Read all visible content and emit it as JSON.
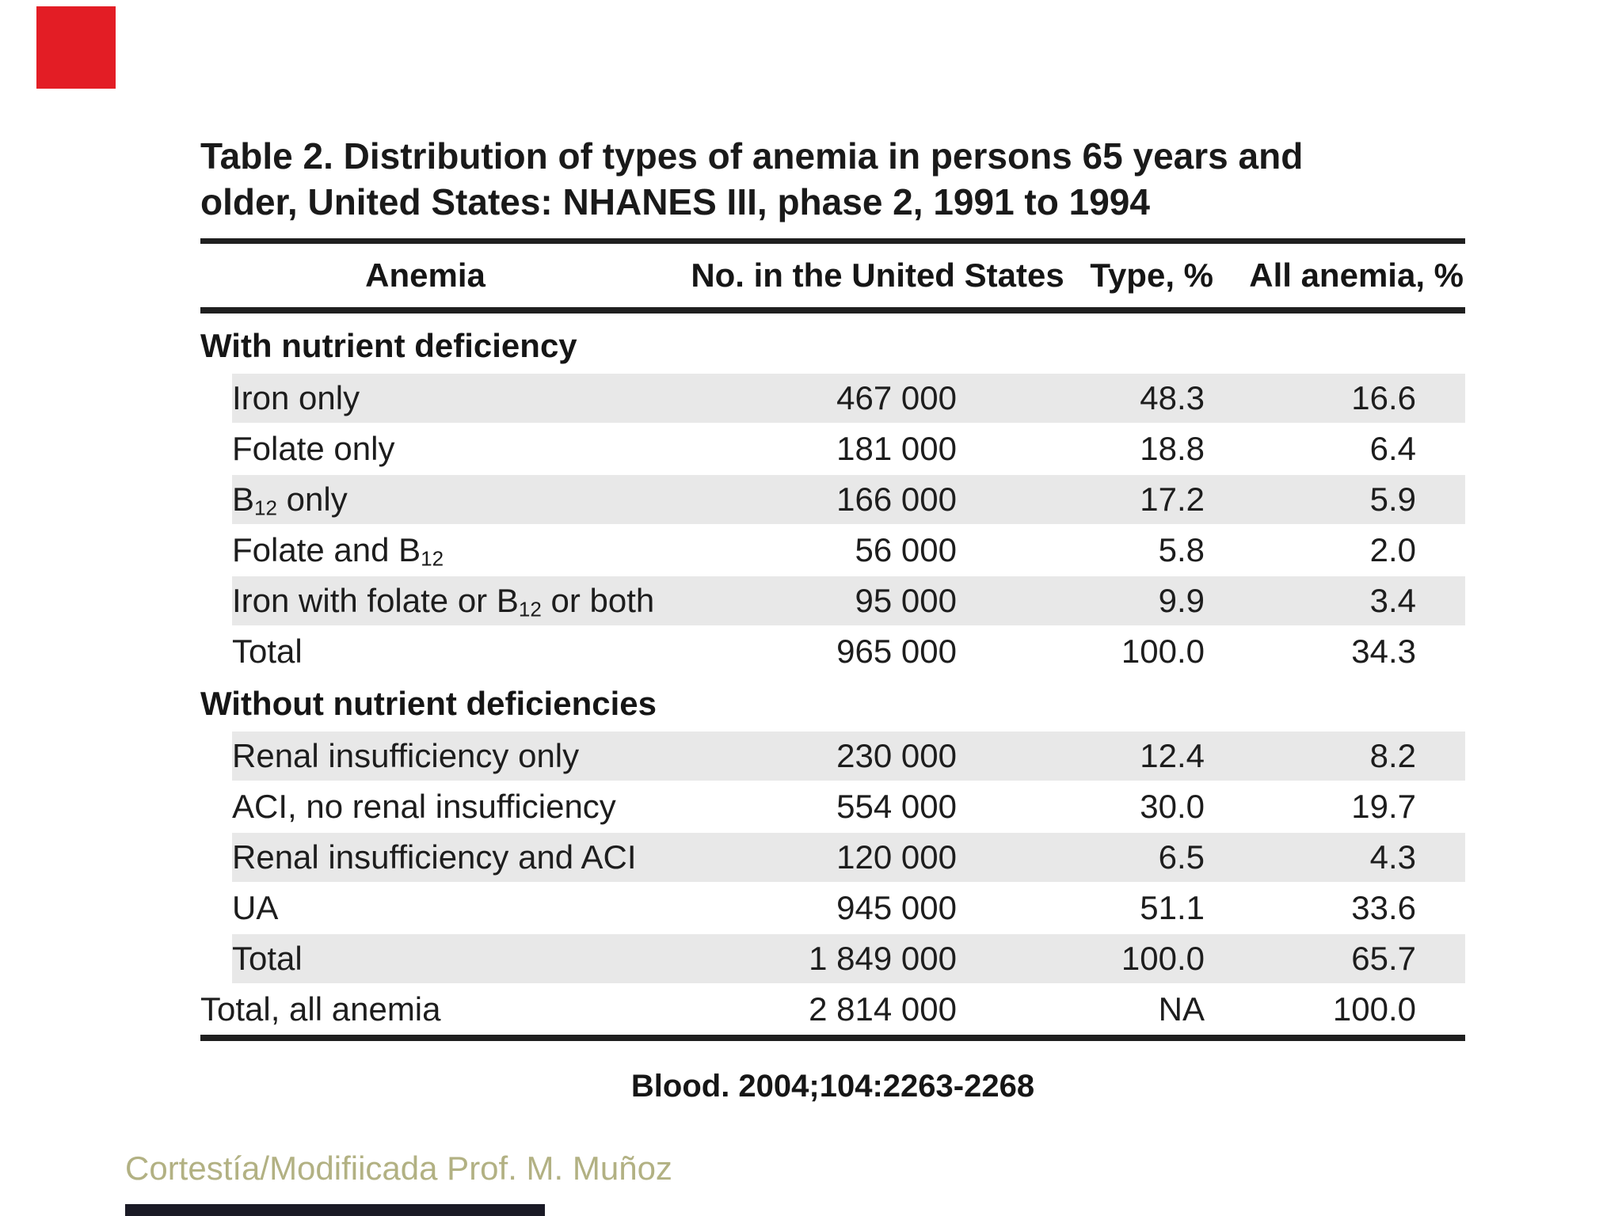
{
  "slide": {
    "background": "#ffffff",
    "red_accent_color": "#e31d25",
    "bottom_bar_color": "#1a1a26"
  },
  "title": {
    "lines": [
      "Table 2. Distribution of types of anemia in persons 65 years and",
      "older, United States: NHANES III, phase 2, 1991 to 1994"
    ]
  },
  "table": {
    "shade_color": "#e8e8e8",
    "headers": {
      "anemia": "Anemia",
      "number": "No. in the United States",
      "type_pct": "Type, %",
      "all_anemia_pct": "All anemia, %"
    },
    "sections": [
      {
        "group_label": "With nutrient deficiency",
        "rows": [
          {
            "label": "Iron only",
            "number": "467 000",
            "type_pct": "48.3",
            "all_pct": "16.6",
            "shaded": true
          },
          {
            "label": "Folate only",
            "number": "181 000",
            "type_pct": "18.8",
            "all_pct": "6.4",
            "shaded": false
          },
          {
            "label": "B[12] only",
            "number": "166 000",
            "type_pct": "17.2",
            "all_pct": "5.9",
            "shaded": true
          },
          {
            "label": "Folate and B[12]",
            "number": "56 000",
            "type_pct": "5.8",
            "all_pct": "2.0",
            "shaded": false
          },
          {
            "label": "Iron with folate or B[12] or both",
            "number": "95 000",
            "type_pct": "9.9",
            "all_pct": "3.4",
            "shaded": true
          },
          {
            "label": "Total",
            "number": "965 000",
            "type_pct": "100.0",
            "all_pct": "34.3",
            "shaded": false
          }
        ]
      },
      {
        "group_label": "Without nutrient deficiencies",
        "rows": [
          {
            "label": "Renal insufficiency only",
            "number": "230 000",
            "type_pct": "12.4",
            "all_pct": "8.2",
            "shaded": true
          },
          {
            "label": "ACI, no renal insufficiency",
            "number": "554 000",
            "type_pct": "30.0",
            "all_pct": "19.7",
            "shaded": false
          },
          {
            "label": "Renal insufficiency and ACI",
            "number": "120 000",
            "type_pct": "6.5",
            "all_pct": "4.3",
            "shaded": true
          },
          {
            "label": "UA",
            "number": "945 000",
            "type_pct": "51.1",
            "all_pct": "33.6",
            "shaded": false
          },
          {
            "label": "Total",
            "number": "1 849 000",
            "type_pct": "100.0",
            "all_pct": "65.7",
            "shaded": true
          }
        ]
      }
    ],
    "grand_total_row": {
      "label": "Total, all anemia",
      "number": "2 814 000",
      "type_pct": "NA",
      "all_pct": "100.0",
      "shaded": false
    }
  },
  "citation": "Blood. 2004;104:2263-2268",
  "credit": "Cortestía/Modifiicada Prof. M. Muñoz",
  "credit_color": "#b2b183"
}
